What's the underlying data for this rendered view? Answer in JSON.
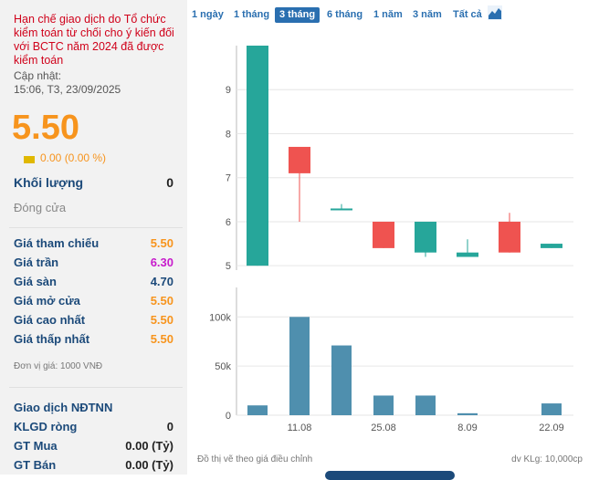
{
  "warning": "Hạn chế giao dịch do Tổ chức kiểm toán từ chối cho ý kiến đối với BCTC năm 2024 đã được kiểm toán",
  "updated_label": "Cập nhật:",
  "updated_time": "15:06, T3, 23/09/2025",
  "price": "5.50",
  "change": "0.00 (0.00 %)",
  "volume_label": "Khối lượng",
  "volume_value": "0",
  "close_label": "Đóng cửa",
  "ref_label": "Giá tham chiếu",
  "ref_value": "5.50",
  "ceil_label": "Giá trần",
  "ceil_value": "6.30",
  "floor_label": "Giá sàn",
  "floor_value": "4.70",
  "open_label": "Giá mở cửa",
  "open_value": "5.50",
  "high_label": "Giá cao nhất",
  "high_value": "5.50",
  "low_label": "Giá thấp nhất",
  "low_value": "5.50",
  "unit_note": "Đơn vị giá: 1000 VNĐ",
  "foreign_title": "Giao dịch NĐTNN",
  "net_label": "KLGD ròng",
  "net_value": "0",
  "buy_label": "GT Mua",
  "buy_value": "0.00 (Tỷ)",
  "sell_label": "GT Bán",
  "sell_value": "0.00 (Tỷ)",
  "tabs": [
    "1 ngày",
    "1 tháng",
    "3 tháng",
    "6 tháng",
    "1 năm",
    "3 năm",
    "Tất cả"
  ],
  "active_tab": "3 tháng",
  "colors": {
    "up": "#26a69a",
    "down": "#ef5350",
    "volume": "#4f8fae",
    "price": "#f7941d",
    "ceiling": "#c71bcb",
    "floor": "#1c4a7a"
  },
  "footer_left": "Đồ thị vẽ theo giá điều chỉnh",
  "footer_right": "dv KLg: 10,000cp",
  "chart_data": {
    "type": "candlestick",
    "price_axis": {
      "ticks": [
        "5",
        "6",
        "7",
        "8",
        "9"
      ],
      "ylim": [
        4.9,
        10
      ]
    },
    "volume_axis": {
      "ticks": [
        "0",
        "50k",
        "100k"
      ],
      "ylim": [
        0,
        130000
      ]
    },
    "x_tick_labels": [
      "11.08",
      "25.08",
      "8.09",
      "22.09"
    ],
    "candles": [
      {
        "open": 5.0,
        "close": 10.0,
        "high": 10.0,
        "low": 5.0,
        "volume": 10000
      },
      {
        "open": 7.7,
        "close": 7.1,
        "high": 7.7,
        "low": 6.0,
        "volume": 100000
      },
      {
        "open": 6.3,
        "close": 6.3,
        "high": 6.4,
        "low": 6.3,
        "volume": 71000
      },
      {
        "open": 6.0,
        "close": 5.4,
        "high": 6.0,
        "low": 5.4,
        "volume": 20000
      },
      {
        "open": 5.3,
        "close": 6.0,
        "high": 6.0,
        "low": 5.2,
        "volume": 20000
      },
      {
        "open": 5.2,
        "close": 5.3,
        "high": 5.6,
        "low": 5.2,
        "volume": 2000
      },
      {
        "open": 6.0,
        "close": 5.3,
        "high": 6.2,
        "low": 5.3,
        "volume": 0
      },
      {
        "open": 5.4,
        "close": 5.5,
        "high": 5.5,
        "low": 5.4,
        "volume": 12000
      }
    ]
  }
}
